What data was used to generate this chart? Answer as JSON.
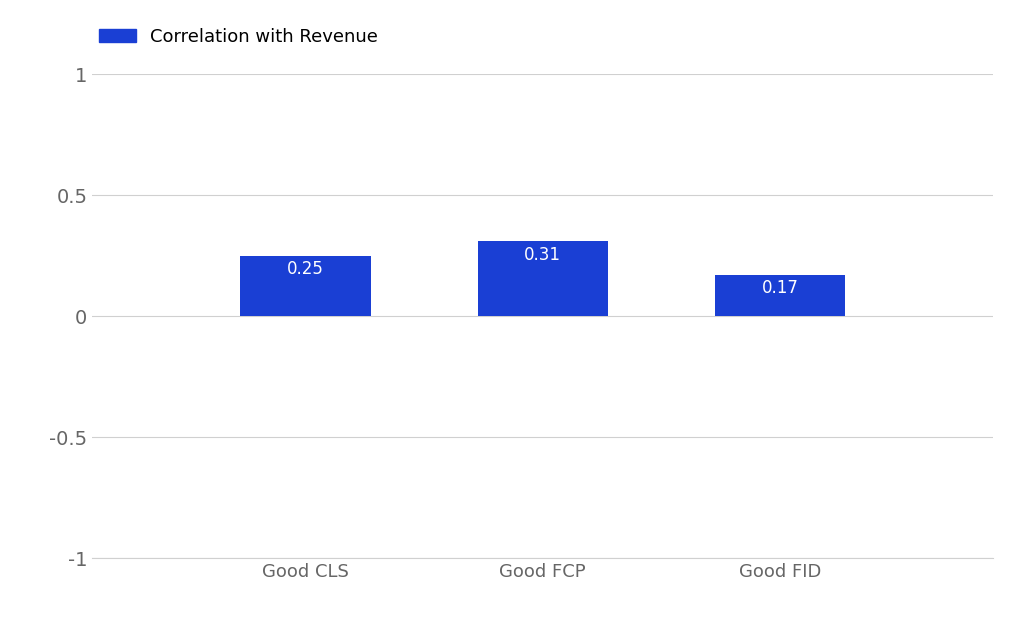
{
  "categories": [
    "Good CLS",
    "Good FCP",
    "Good FID"
  ],
  "values": [
    0.25,
    0.31,
    0.17
  ],
  "bar_color": "#1a3fd4",
  "legend_label": "Correlation with Revenue",
  "ylim": [
    -1,
    1
  ],
  "yticks": [
    -1,
    -0.5,
    0,
    0.5,
    1
  ],
  "ytick_labels": [
    "-1",
    "-0.5",
    "0",
    "0.5",
    "1"
  ],
  "background_color": "#ffffff",
  "grid_color": "#d0d0d0",
  "label_fontsize": 13,
  "tick_fontsize": 14,
  "legend_fontsize": 13,
  "value_fontsize": 12,
  "value_color": "#ffffff",
  "bar_width": 0.55,
  "tick_label_color": "#666666"
}
